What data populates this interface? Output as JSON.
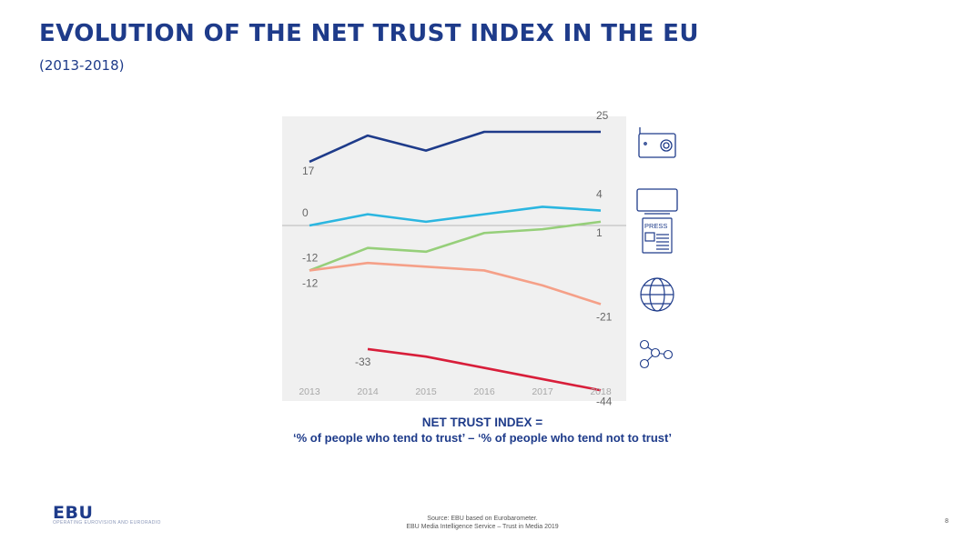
{
  "title": "EVOLUTION OF THE NET TRUST INDEX IN THE EU",
  "subtitle": "(2013-2018)",
  "colors": {
    "title": "#1e3b8a",
    "chart_bg": "#f0f0f0"
  },
  "chart_data": {
    "type": "line",
    "title": "",
    "xlabel": "",
    "ylabel": "",
    "categories": [
      "2013",
      "2014",
      "2015",
      "2016",
      "2017",
      "2018"
    ],
    "ylim": [
      -50,
      30
    ],
    "grid": false,
    "series": [
      {
        "name": "Radio",
        "icon": "radio-icon",
        "color": "#1e3b8a",
        "values": [
          17,
          24,
          20,
          25,
          25,
          25
        ],
        "labels": [
          {
            "index": 0,
            "text": "17"
          },
          {
            "index": 5,
            "text": "25"
          }
        ]
      },
      {
        "name": "TV",
        "icon": "tv-icon",
        "color": "#2bb6e0",
        "values": [
          0,
          3,
          1,
          3,
          5,
          4
        ],
        "labels": [
          {
            "index": 0,
            "text": "0"
          },
          {
            "index": 5,
            "text": "4"
          }
        ]
      },
      {
        "name": "Written press",
        "icon": "press-icon",
        "color": "#96cf7a",
        "values": [
          -12,
          -6,
          -7,
          -2,
          -1,
          1
        ],
        "labels": [
          {
            "index": 0,
            "text": "-12"
          },
          {
            "index": 5,
            "text": "1"
          }
        ]
      },
      {
        "name": "Internet",
        "icon": "globe-icon",
        "color": "#f5a088",
        "values": [
          -12,
          -10,
          -11,
          -12,
          -16,
          -21
        ],
        "labels": [
          {
            "index": 0,
            "text": "-12"
          },
          {
            "index": 5,
            "text": "-21"
          }
        ]
      },
      {
        "name": "Social networks",
        "icon": "social-network-icon",
        "color": "#d81e3a",
        "values": [
          null,
          -33,
          -35,
          -38,
          -41,
          -44
        ],
        "labels": [
          {
            "index": 1,
            "text": "-33"
          },
          {
            "index": 5,
            "text": "-44"
          }
        ]
      }
    ],
    "reference_line": 0,
    "icon_text": {
      "press": "PRESS"
    }
  },
  "formula": {
    "heading": "NET TRUST INDEX =",
    "text": "‘% of people who tend to trust’ – ‘% of people who tend not to trust’"
  },
  "footer": {
    "logo": "EBU",
    "logo_tagline": "OPERATING EUROVISION AND EURORADIO",
    "source_line1": "Source: EBU based on Eurobarometer.",
    "source_line2": "EBU Media Intelligence Service – Trust in Media 2019",
    "page_number": "8"
  }
}
